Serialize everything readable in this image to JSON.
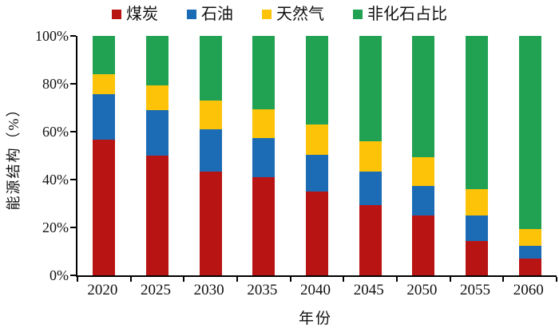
{
  "chart_data": {
    "type": "bar",
    "stacked": true,
    "stacked_total": 100,
    "title": "",
    "xlabel": "年份",
    "ylabel": "能源结构（%）",
    "ylim": [
      0,
      100
    ],
    "ytick_step": 20,
    "yticks": [
      0,
      20,
      40,
      60,
      80,
      100
    ],
    "ytick_labels": [
      "0%",
      "20%",
      "40%",
      "60%",
      "80%",
      "100%"
    ],
    "categories": [
      "2020",
      "2025",
      "2030",
      "2035",
      "2040",
      "2045",
      "2050",
      "2055",
      "2060"
    ],
    "series": [
      {
        "name": "煤炭",
        "color": "#b91414",
        "values": [
          56.8,
          50.0,
          43.5,
          41.0,
          35.0,
          29.5,
          25.0,
          14.5,
          7.0
        ]
      },
      {
        "name": "石油",
        "color": "#1b6cb5",
        "values": [
          18.9,
          19.0,
          17.5,
          16.5,
          15.5,
          14.0,
          12.5,
          10.5,
          5.5
        ]
      },
      {
        "name": "天然气",
        "color": "#fcc308",
        "values": [
          8.4,
          10.5,
          12.0,
          12.0,
          12.5,
          12.5,
          12.0,
          11.0,
          7.0
        ]
      },
      {
        "name": "非化石占比",
        "color": "#21a253",
        "values": [
          15.9,
          20.5,
          27.0,
          30.5,
          37.0,
          44.0,
          50.5,
          64.0,
          80.5
        ]
      }
    ],
    "legend_position": "top",
    "grid": false,
    "axis_color": "#000000",
    "text_color": "#111111",
    "background_color": "#ffffff"
  }
}
